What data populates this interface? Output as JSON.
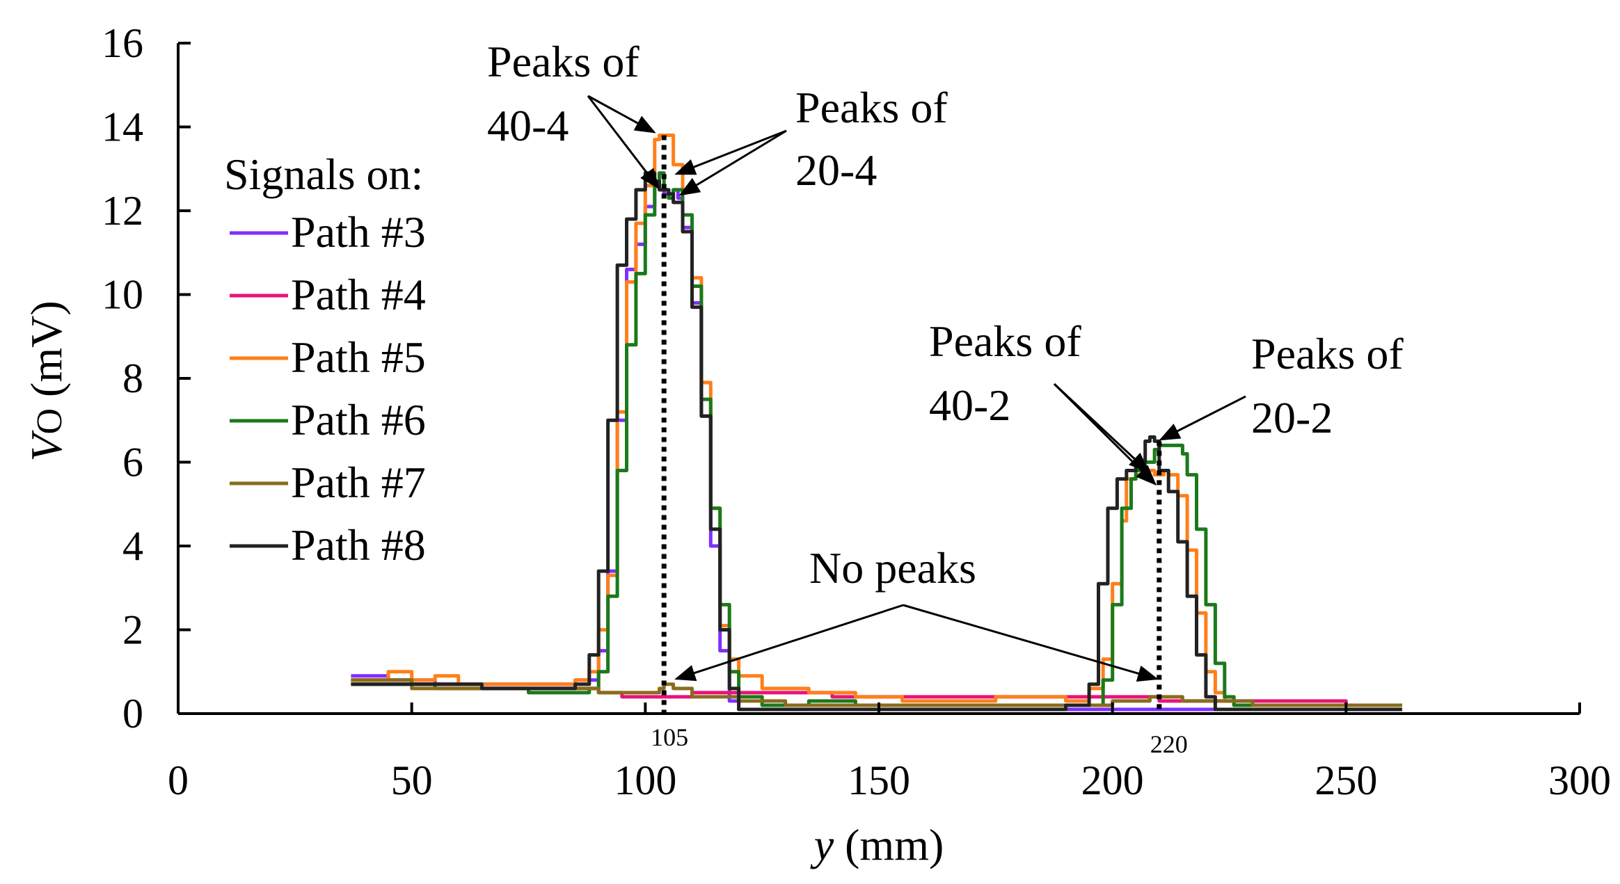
{
  "chart_data": {
    "type": "line",
    "title": "",
    "xlabel_italic": "y",
    "xlabel_rest": " (mm)",
    "ylabel_italic": "V",
    "ylabel_sub": "O",
    "ylabel_rest": " (mV)",
    "xlim": [
      0,
      300
    ],
    "ylim": [
      0,
      16
    ],
    "xticks": [
      0,
      50,
      100,
      150,
      200,
      250,
      300
    ],
    "yticks": [
      0,
      2,
      4,
      6,
      8,
      10,
      12,
      14,
      16
    ],
    "legend_title": "Signals on:",
    "legend_position": "left",
    "marker_labels": [
      {
        "x": 104,
        "text": "105"
      },
      {
        "x": 210,
        "text": "220"
      }
    ],
    "annotations": [
      {
        "lines": [
          "Peaks of",
          "40-4"
        ]
      },
      {
        "lines": [
          "Peaks of",
          "20-4"
        ]
      },
      {
        "lines": [
          "Peaks of",
          "40-2"
        ]
      },
      {
        "lines": [
          "Peaks of",
          "20-2"
        ]
      },
      {
        "lines": [
          "No peaks"
        ]
      }
    ],
    "series": [
      {
        "name": "Path #3",
        "color": "#7f2fff",
        "x": [
          37,
          45,
          55,
          65,
          75,
          85,
          90,
          92,
          94,
          96,
          98,
          100,
          102,
          103,
          104,
          106,
          107,
          108,
          110,
          112,
          114,
          116,
          118,
          120,
          125,
          135,
          145,
          155,
          165,
          175,
          185,
          195,
          205,
          210,
          225,
          235,
          245,
          255,
          262
        ],
        "y": [
          0.9,
          0.8,
          0.7,
          0.7,
          0.7,
          0.8,
          1.5,
          3.4,
          7.0,
          10.6,
          11.2,
          12.1,
          12.6,
          12.5,
          12.4,
          12.5,
          12.3,
          11.6,
          9.8,
          7.1,
          4.0,
          1.5,
          0.3,
          0.1,
          0.1,
          0.1,
          0.1,
          0.1,
          0.1,
          0.1,
          0.1,
          0.1,
          0.1,
          0.1,
          0.1,
          0.1,
          0.1,
          0.1,
          0.1
        ]
      },
      {
        "name": "Path #4",
        "color": "#e8137a",
        "x": [
          37,
          50,
          65,
          80,
          90,
          95,
          105,
          110,
          115,
          120,
          130,
          140,
          150,
          160,
          170,
          180,
          190,
          200,
          210,
          220,
          230,
          240,
          250,
          262
        ],
        "y": [
          0.8,
          0.7,
          0.6,
          0.6,
          0.5,
          0.4,
          0.4,
          0.5,
          0.5,
          0.5,
          0.5,
          0.4,
          0.4,
          0.4,
          0.4,
          0.4,
          0.4,
          0.4,
          0.3,
          0.3,
          0.3,
          0.3,
          0.2,
          0.2
        ]
      },
      {
        "name": "Path #5",
        "color": "#ff7f1a",
        "x": [
          37,
          42,
          45,
          50,
          55,
          60,
          70,
          80,
          85,
          88,
          90,
          92,
          94,
          96,
          98,
          100,
          102,
          103,
          105,
          106,
          108,
          110,
          112,
          114,
          116,
          118,
          120,
          125,
          135,
          145,
          155,
          165,
          175,
          185,
          190,
          195,
          198,
          200,
          202,
          203,
          205,
          207,
          209,
          211,
          212,
          214,
          216,
          218,
          220,
          222,
          224,
          226,
          230,
          240,
          250,
          262
        ],
        "y": [
          0.8,
          0.8,
          1.0,
          0.8,
          0.9,
          0.7,
          0.7,
          0.7,
          0.8,
          1.0,
          2.0,
          3.3,
          7.2,
          10.3,
          11.7,
          12.6,
          13.7,
          13.8,
          13.8,
          13.1,
          11.9,
          10.4,
          7.9,
          4.9,
          2.1,
          1.3,
          0.9,
          0.6,
          0.5,
          0.4,
          0.3,
          0.3,
          0.4,
          0.4,
          0.3,
          0.6,
          1.3,
          3.1,
          4.6,
          5.6,
          5.7,
          5.8,
          5.7,
          5.8,
          5.7,
          5.2,
          3.9,
          2.4,
          1.0,
          0.5,
          0.3,
          0.2,
          0.2,
          0.2,
          0.2,
          0.2
        ]
      },
      {
        "name": "Path #6",
        "color": "#1a7a1a",
        "x": [
          37,
          45,
          55,
          65,
          75,
          85,
          88,
          90,
          92,
          94,
          96,
          98,
          100,
          102,
          103,
          104,
          105,
          106,
          108,
          110,
          112,
          114,
          116,
          118,
          120,
          125,
          135,
          145,
          155,
          165,
          175,
          185,
          190,
          195,
          198,
          200,
          202,
          204,
          205,
          207,
          209,
          210,
          212,
          214,
          215,
          216,
          218,
          220,
          222,
          224,
          226,
          230,
          240,
          250,
          262
        ],
        "y": [
          0.7,
          0.7,
          0.6,
          0.6,
          0.5,
          0.5,
          0.6,
          1.0,
          2.8,
          5.8,
          8.8,
          10.5,
          11.9,
          12.6,
          12.9,
          12.5,
          12.3,
          12.5,
          11.9,
          10.2,
          7.5,
          4.9,
          2.6,
          1.0,
          0.4,
          0.2,
          0.3,
          0.2,
          0.2,
          0.2,
          0.2,
          0.2,
          0.2,
          0.2,
          0.8,
          2.6,
          4.9,
          5.6,
          5.8,
          6.0,
          6.3,
          6.4,
          6.4,
          6.4,
          6.2,
          5.7,
          4.4,
          2.6,
          1.2,
          0.4,
          0.2,
          0.2,
          0.2,
          0.2,
          0.2
        ]
      },
      {
        "name": "Path #7",
        "color": "#8a6c1c",
        "x": [
          37,
          50,
          65,
          80,
          90,
          100,
          103,
          104,
          106,
          110,
          120,
          130,
          140,
          150,
          160,
          170,
          180,
          190,
          200,
          205,
          208,
          210,
          212,
          215,
          220,
          230,
          240,
          250,
          262
        ],
        "y": [
          0.8,
          0.6,
          0.6,
          0.6,
          0.5,
          0.5,
          0.6,
          0.7,
          0.6,
          0.4,
          0.3,
          0.2,
          0.2,
          0.2,
          0.2,
          0.2,
          0.2,
          0.2,
          0.3,
          0.3,
          0.4,
          0.4,
          0.4,
          0.3,
          0.3,
          0.2,
          0.2,
          0.2,
          0.2
        ]
      },
      {
        "name": "Path #8",
        "color": "#222222",
        "x": [
          37,
          50,
          65,
          80,
          85,
          88,
          90,
          92,
          94,
          96,
          98,
          100,
          102,
          103,
          104,
          105,
          106,
          108,
          110,
          112,
          114,
          116,
          118,
          120,
          125,
          135,
          145,
          155,
          165,
          175,
          185,
          190,
          195,
          197,
          199,
          201,
          203,
          205,
          207,
          208,
          209,
          210,
          212,
          214,
          216,
          218,
          220,
          222,
          224,
          226,
          230,
          240,
          250,
          262
        ],
        "y": [
          0.7,
          0.7,
          0.6,
          0.6,
          0.7,
          1.4,
          3.4,
          7.0,
          10.7,
          11.8,
          12.5,
          12.9,
          12.7,
          12.5,
          12.5,
          12.4,
          12.2,
          11.5,
          9.7,
          7.1,
          4.4,
          2.0,
          0.6,
          0.1,
          0.1,
          0.1,
          0.1,
          0.1,
          0.1,
          0.1,
          0.1,
          0.2,
          0.7,
          3.1,
          4.9,
          5.6,
          5.8,
          6.0,
          6.5,
          6.6,
          6.5,
          5.8,
          5.3,
          4.1,
          2.8,
          1.4,
          0.4,
          0.1,
          0.1,
          0.1,
          0.1,
          0.1,
          0.1,
          0.1
        ]
      }
    ]
  }
}
